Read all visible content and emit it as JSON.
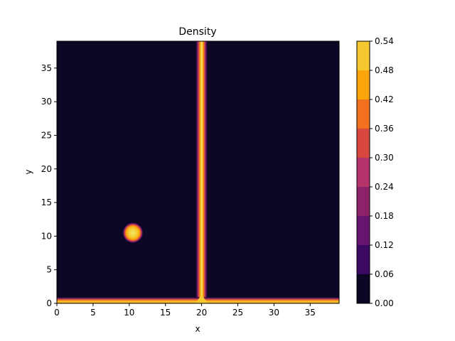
{
  "chart_data": {
    "type": "heatmap",
    "subtype": "filled-contour",
    "title": "Density",
    "xlabel": "x",
    "ylabel": "y",
    "xlim": [
      0,
      39
    ],
    "ylim": [
      0,
      39
    ],
    "x_ticks": [
      "0",
      "5",
      "10",
      "15",
      "20",
      "25",
      "30",
      "35"
    ],
    "y_ticks": [
      "0",
      "5",
      "10",
      "15",
      "20",
      "25",
      "30",
      "35"
    ],
    "x_tick_values": [
      0,
      5,
      10,
      15,
      20,
      25,
      30,
      35
    ],
    "y_tick_values": [
      0,
      5,
      10,
      15,
      20,
      25,
      30,
      35
    ],
    "colorbar": {
      "levels": [
        0.0,
        0.06,
        0.12,
        0.18,
        0.24,
        0.3,
        0.36,
        0.42,
        0.48,
        0.54
      ],
      "labels": [
        "0.00",
        "0.06",
        "0.12",
        "0.18",
        "0.24",
        "0.30",
        "0.36",
        "0.42",
        "0.48",
        "0.54"
      ],
      "colors": [
        "#0b0724",
        "#3b0964",
        "#65156e",
        "#8c2369",
        "#b5336b",
        "#d8483f",
        "#f1711f",
        "#fca50a",
        "#f5c82f",
        "#f0e86a"
      ]
    },
    "features": [
      {
        "kind": "vertical-band",
        "x": 20,
        "width": 1.6,
        "y_range": [
          0,
          39
        ],
        "peak": 0.54
      },
      {
        "kind": "horizontal-band",
        "y": 0.4,
        "width": 1.0,
        "x_range": [
          0,
          39
        ],
        "peak": 0.5
      },
      {
        "kind": "blob",
        "x": 10.5,
        "y": 10.5,
        "radius": 1.4,
        "peak": 0.54
      }
    ]
  }
}
